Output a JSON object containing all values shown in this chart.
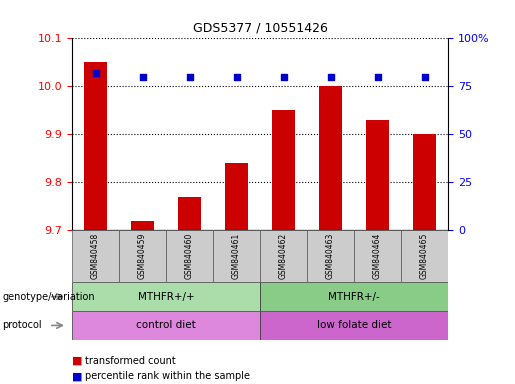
{
  "title": "GDS5377 / 10551426",
  "samples": [
    "GSM840458",
    "GSM840459",
    "GSM840460",
    "GSM840461",
    "GSM840462",
    "GSM840463",
    "GSM840464",
    "GSM840465"
  ],
  "bar_values": [
    10.05,
    9.72,
    9.77,
    9.84,
    9.95,
    10.0,
    9.93,
    9.9
  ],
  "percentile_values": [
    82,
    80,
    80,
    80,
    80,
    80,
    80,
    80
  ],
  "ylim_left": [
    9.7,
    10.1
  ],
  "ylim_right": [
    0,
    100
  ],
  "yticks_left": [
    9.7,
    9.8,
    9.9,
    10.0,
    10.1
  ],
  "yticks_right": [
    0,
    25,
    50,
    75,
    100
  ],
  "bar_color": "#cc0000",
  "dot_color": "#0000cc",
  "genotype_groups": [
    {
      "label": "MTHFR+/+",
      "start": 0,
      "end": 3,
      "color": "#aaddaa"
    },
    {
      "label": "MTHFR+/-",
      "start": 4,
      "end": 7,
      "color": "#88cc88"
    }
  ],
  "protocol_groups": [
    {
      "label": "control diet",
      "start": 0,
      "end": 3,
      "color": "#dd88dd"
    },
    {
      "label": "low folate diet",
      "start": 4,
      "end": 7,
      "color": "#cc66cc"
    }
  ],
  "legend_bar_label": "transformed count",
  "legend_dot_label": "percentile rank within the sample",
  "genotype_row_label": "genotype/variation",
  "protocol_row_label": "protocol"
}
